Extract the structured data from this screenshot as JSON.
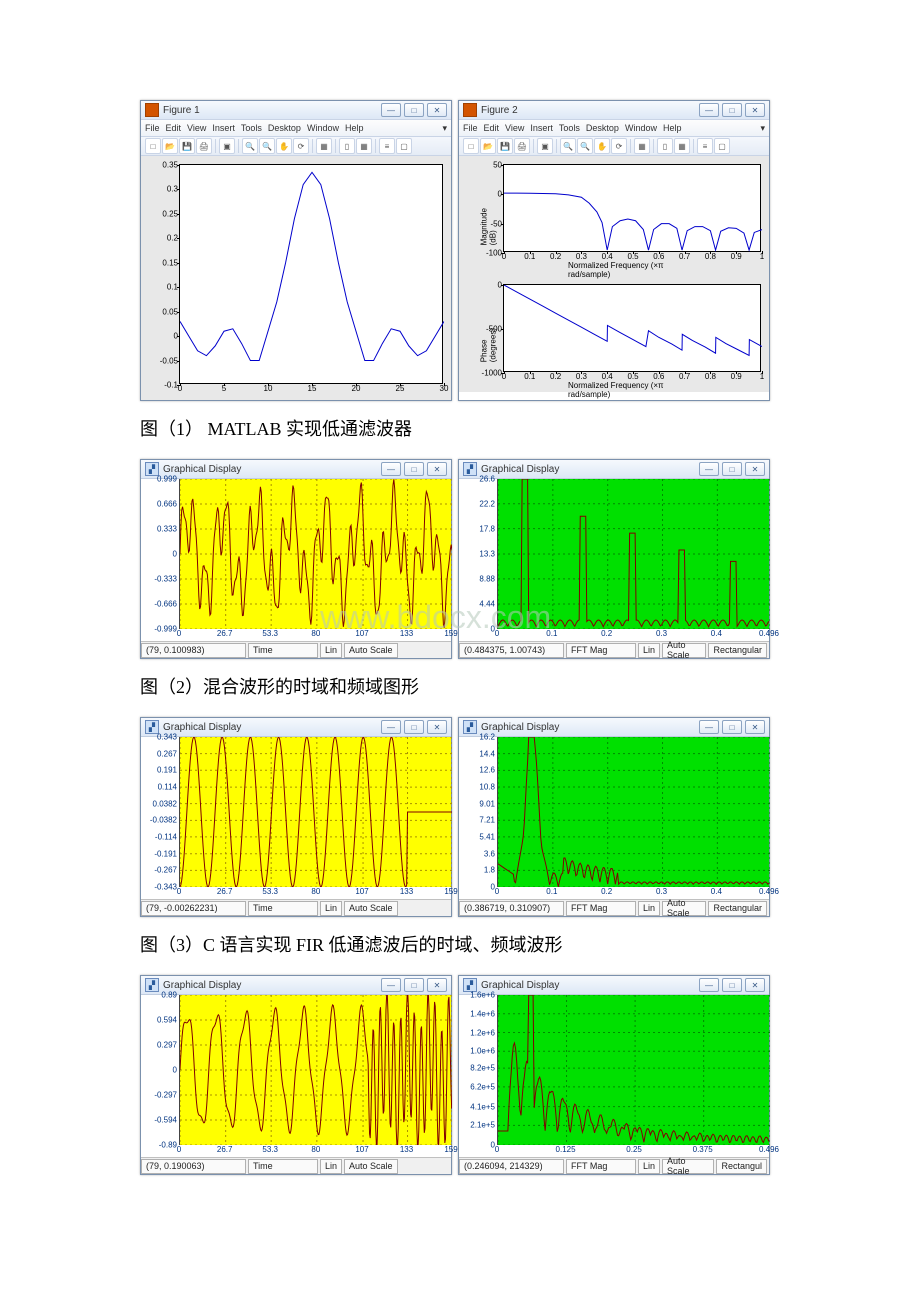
{
  "row1": {
    "fig1": {
      "title": "Figure 1",
      "menu": [
        "File",
        "Edit",
        "View",
        "Insert",
        "Tools",
        "Desktop",
        "Window",
        "Help"
      ],
      "plot": {
        "background": "#e8e8e8",
        "axes_bg": "#ffffff",
        "curve_color": "#0000cc",
        "xlim": [
          0,
          30
        ],
        "ylim": [
          -0.1,
          0.35
        ],
        "xticks": [
          0,
          5,
          10,
          15,
          20,
          25,
          30
        ],
        "yticks": [
          -0.1,
          -0.05,
          0,
          0.05,
          0.1,
          0.15,
          0.2,
          0.25,
          0.3,
          0.35
        ],
        "data": [
          [
            0,
            0.03
          ],
          [
            1,
            0.0
          ],
          [
            2,
            -0.03
          ],
          [
            3,
            -0.04
          ],
          [
            4,
            -0.02
          ],
          [
            5,
            0.01
          ],
          [
            6,
            0.015
          ],
          [
            7,
            -0.015
          ],
          [
            8,
            -0.05
          ],
          [
            9,
            -0.05
          ],
          [
            10,
            0.01
          ],
          [
            11,
            0.07
          ],
          [
            12,
            0.15
          ],
          [
            13,
            0.24
          ],
          [
            14,
            0.31
          ],
          [
            15,
            0.335
          ],
          [
            16,
            0.31
          ],
          [
            17,
            0.24
          ],
          [
            18,
            0.15
          ],
          [
            19,
            0.07
          ],
          [
            20,
            0.01
          ],
          [
            21,
            -0.05
          ],
          [
            22,
            -0.05
          ],
          [
            23,
            -0.015
          ],
          [
            24,
            0.015
          ],
          [
            25,
            0.01
          ],
          [
            26,
            -0.02
          ],
          [
            27,
            -0.04
          ],
          [
            28,
            -0.03
          ],
          [
            29,
            0.0
          ],
          [
            30,
            0.03
          ]
        ]
      }
    },
    "fig2": {
      "title": "Figure 2",
      "menu": [
        "File",
        "Edit",
        "View",
        "Insert",
        "Tools",
        "Desktop",
        "Window",
        "Help"
      ],
      "top": {
        "ylabel": "Magnitude (dB)",
        "xlabel": "Normalized Frequency  (×π rad/sample)",
        "xlim": [
          0,
          1
        ],
        "ylim": [
          -100,
          50
        ],
        "xticks": [
          0,
          0.1,
          0.2,
          0.3,
          0.4,
          0.5,
          0.6,
          0.7,
          0.8,
          0.9,
          1
        ],
        "yticks": [
          -100,
          -50,
          0,
          50
        ],
        "curve_color": "#0000cc",
        "data": [
          [
            0,
            2
          ],
          [
            0.05,
            2
          ],
          [
            0.1,
            1.8
          ],
          [
            0.15,
            1.5
          ],
          [
            0.2,
            1
          ],
          [
            0.25,
            -1
          ],
          [
            0.3,
            -5
          ],
          [
            0.33,
            -15
          ],
          [
            0.36,
            -30
          ],
          [
            0.38,
            -48
          ],
          [
            0.4,
            -95
          ],
          [
            0.42,
            -55
          ],
          [
            0.45,
            -45
          ],
          [
            0.48,
            -42
          ],
          [
            0.51,
            -45
          ],
          [
            0.54,
            -60
          ],
          [
            0.56,
            -95
          ],
          [
            0.58,
            -60
          ],
          [
            0.61,
            -50
          ],
          [
            0.64,
            -50
          ],
          [
            0.67,
            -58
          ],
          [
            0.69,
            -95
          ],
          [
            0.71,
            -62
          ],
          [
            0.74,
            -55
          ],
          [
            0.77,
            -55
          ],
          [
            0.8,
            -62
          ],
          [
            0.82,
            -95
          ],
          [
            0.84,
            -63
          ],
          [
            0.87,
            -57
          ],
          [
            0.9,
            -58
          ],
          [
            0.93,
            -66
          ],
          [
            0.95,
            -95
          ],
          [
            0.97,
            -65
          ],
          [
            1,
            -60
          ]
        ]
      },
      "bot": {
        "ylabel": "Phase (degrees)",
        "xlabel": "Normalized Frequency  (×π rad/sample)",
        "xlim": [
          0,
          1
        ],
        "ylim": [
          -1000,
          0
        ],
        "xticks": [
          0,
          0.1,
          0.2,
          0.3,
          0.4,
          0.5,
          0.6,
          0.7,
          0.8,
          0.9,
          1
        ],
        "yticks": [
          -1000,
          -500,
          0
        ],
        "curve_color": "#0000cc",
        "data": [
          [
            0,
            0
          ],
          [
            0.05,
            -80
          ],
          [
            0.1,
            -160
          ],
          [
            0.15,
            -240
          ],
          [
            0.2,
            -320
          ],
          [
            0.25,
            -400
          ],
          [
            0.3,
            -480
          ],
          [
            0.35,
            -560
          ],
          [
            0.4,
            -640
          ],
          [
            0.401,
            -460
          ],
          [
            0.45,
            -540
          ],
          [
            0.5,
            -620
          ],
          [
            0.55,
            -700
          ],
          [
            0.56,
            -520
          ],
          [
            0.6,
            -595
          ],
          [
            0.65,
            -670
          ],
          [
            0.69,
            -740
          ],
          [
            0.691,
            -560
          ],
          [
            0.73,
            -630
          ],
          [
            0.78,
            -705
          ],
          [
            0.82,
            -775
          ],
          [
            0.821,
            -595
          ],
          [
            0.86,
            -665
          ],
          [
            0.91,
            -740
          ],
          [
            0.95,
            -800
          ],
          [
            0.951,
            -620
          ],
          [
            1,
            -700
          ]
        ]
      }
    }
  },
  "caption1": "图（1） MATLAB 实现低通滤波器",
  "row2": {
    "left": {
      "title": "Graphical Display",
      "bg": "#ffff00",
      "curve_color": "#800000",
      "yticks": [
        -0.999,
        -0.666,
        -0.333,
        0,
        0.333,
        0.666,
        0.999
      ],
      "xticks": [
        0,
        26.7,
        53.3,
        80.0,
        107,
        133,
        159
      ],
      "ylim": [
        -0.999,
        0.999
      ],
      "xlim": [
        0,
        159
      ],
      "status": [
        "(79, 0.100983)",
        "Time",
        "Lin",
        "Auto Scale"
      ],
      "series": "mixed"
    },
    "right": {
      "title": "Graphical Display",
      "bg": "#00e000",
      "curve_color": "#800000",
      "yticks": [
        0,
        4.44,
        8.88,
        13.3,
        17.8,
        22.2,
        26.6
      ],
      "xticks": [
        0,
        0.1,
        0.2,
        0.3,
        0.4,
        0.496
      ],
      "ylim": [
        0,
        26.6
      ],
      "xlim": [
        0,
        0.496
      ],
      "status": [
        "(0.484375, 1.00743)",
        "FFT Mag",
        "Lin",
        "Auto Scale",
        "Rectangular"
      ],
      "series": "mixed_fft"
    }
  },
  "caption2": "图（2）混合波形的时域和频域图形",
  "row3": {
    "left": {
      "title": "Graphical Display",
      "bg": "#ffff00",
      "curve_color": "#800000",
      "yticks": [
        -0.343,
        -0.267,
        -0.191,
        -0.114,
        -0.0382,
        0.0382,
        0.114,
        0.191,
        0.267,
        0.343
      ],
      "xticks": [
        0,
        26.7,
        53.3,
        80.0,
        107,
        133,
        159
      ],
      "ylim": [
        -0.343,
        0.343
      ],
      "xlim": [
        0,
        159
      ],
      "status": [
        "(79, -0.00262231)",
        "Time",
        "Lin",
        "Auto Scale"
      ],
      "series": "sine8"
    },
    "right": {
      "title": "Graphical Display",
      "bg": "#00e000",
      "curve_color": "#800000",
      "yticks": [
        0,
        1.8,
        3.6,
        5.41,
        7.21,
        9.01,
        10.8,
        12.6,
        14.4,
        16.2
      ],
      "xticks": [
        0,
        0.1,
        0.2,
        0.3,
        0.4,
        0.496
      ],
      "ylim": [
        0,
        16.2
      ],
      "xlim": [
        0,
        0.496
      ],
      "status": [
        "(0.386719, 0.310907)",
        "FFT Mag",
        "Lin",
        "Auto Scale",
        "Rectangular"
      ],
      "series": "sine8_fft"
    }
  },
  "caption3": "图（3）C 语言实现 FIR 低通滤波后的时域、频域波形",
  "row4": {
    "left": {
      "title": "Graphical Display",
      "bg": "#ffff00",
      "curve_color": "#800000",
      "yticks": [
        -0.89,
        -0.594,
        -0.297,
        0,
        0.297,
        0.594,
        0.89
      ],
      "xticks": [
        0,
        26.7,
        53.3,
        80.0,
        107,
        133,
        159
      ],
      "ylim": [
        -0.89,
        0.89
      ],
      "xlim": [
        0,
        159
      ],
      "status": [
        "(79, 0.190063)",
        "Time",
        "Lin",
        "Auto Scale"
      ],
      "series": "distort"
    },
    "right": {
      "title": "Graphical Display",
      "bg": "#00e000",
      "curve_color": "#800000",
      "yticks": [
        0,
        "2.1e+5",
        "4.1e+5",
        "6.2e+5",
        "8.2e+5",
        "1.0e+6",
        "1.2e+6",
        "1.4e+6",
        "1.6e+6"
      ],
      "xticks": [
        0,
        0.125,
        0.25,
        0.375,
        0.496
      ],
      "ylim": [
        0,
        1600000
      ],
      "xlim": [
        0,
        0.496
      ],
      "status": [
        "(0.246094, 214329)",
        "FFT Mag",
        "Lin",
        "Auto Scale",
        "Rectangul"
      ],
      "series": "distort_fft"
    }
  },
  "watermark": "www.bdocx.com",
  "colors": {
    "matlab_frame": "#7b91ad",
    "tick_color": "#003380",
    "grid_dash": "#9e8a00"
  }
}
